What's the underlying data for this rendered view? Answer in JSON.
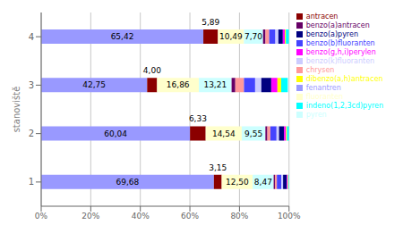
{
  "chart_data": {
    "type": "bar",
    "orientation": "horizontal",
    "stacked": true,
    "grid": true,
    "legend": "upper right",
    "data_labels": true,
    "ylabel": "stanoviště",
    "categories": [
      "1",
      "2",
      "3",
      "4"
    ],
    "xlim": [
      0,
      100
    ],
    "xticks": [
      {
        "value": 0,
        "label": "0%"
      },
      {
        "value": 20,
        "label": "20%"
      },
      {
        "value": 40,
        "label": "40%"
      },
      {
        "value": 60,
        "label": "60%"
      },
      {
        "value": 80,
        "label": "80%"
      },
      {
        "value": 100,
        "label": "100%"
      }
    ],
    "series": [
      {
        "name": "fenantren",
        "color": "#9999FF",
        "values": [
          69.68,
          60.04,
          42.75,
          65.42
        ],
        "value_labels": [
          "69,68",
          "60,04",
          "42,75",
          "65,42"
        ]
      },
      {
        "name": "antracen",
        "color": "#8B0000",
        "values": [
          3.15,
          6.33,
          4.0,
          5.89
        ],
        "value_labels": [
          "3,15",
          "6,33",
          "4,00",
          "5,89"
        ]
      },
      {
        "name": "fluoranten",
        "color": "#FFFFCC",
        "values": [
          12.5,
          14.54,
          16.86,
          10.49
        ],
        "value_labels": [
          "12,50",
          "14,54",
          "16,86",
          "10,49"
        ]
      },
      {
        "name": "pyren",
        "color": "#CCFFFF",
        "values": [
          8.47,
          9.55,
          13.21,
          7.7
        ],
        "value_labels": [
          "8,47",
          "9,55",
          "13,21",
          "7,70"
        ]
      },
      {
        "name": "benzo(a)antracen",
        "color": "#660066",
        "values": [
          0.5,
          0.8,
          1.5,
          1.0
        ]
      },
      {
        "name": "chrysen",
        "color": "#FF9999",
        "values": [
          0.8,
          1.2,
          3.5,
          1.5
        ]
      },
      {
        "name": "benzo(b)fluoranten",
        "color": "#4444FF",
        "values": [
          1.8,
          2.5,
          4.5,
          2.5
        ]
      },
      {
        "name": "benzo(k)fluoranten",
        "color": "#CCCCFF",
        "values": [
          0.7,
          1.0,
          2.5,
          1.2
        ]
      },
      {
        "name": "benzo(a)pyren",
        "color": "#000080",
        "values": [
          1.5,
          2.0,
          4.0,
          1.8
        ]
      },
      {
        "name": "benzo(g,h,i)perylen",
        "color": "#FF00FF",
        "values": [
          0.4,
          0.8,
          2.5,
          0.8
        ]
      },
      {
        "name": "dibenzo(a,h)antracen",
        "color": "#FFFF00",
        "values": [
          0.2,
          0.4,
          1.5,
          0.4
        ]
      },
      {
        "name": "indeno(1,2,3cd)pyren",
        "color": "#00FFFF",
        "values": [
          0.3,
          0.84,
          2.68,
          1.3
        ]
      }
    ]
  }
}
